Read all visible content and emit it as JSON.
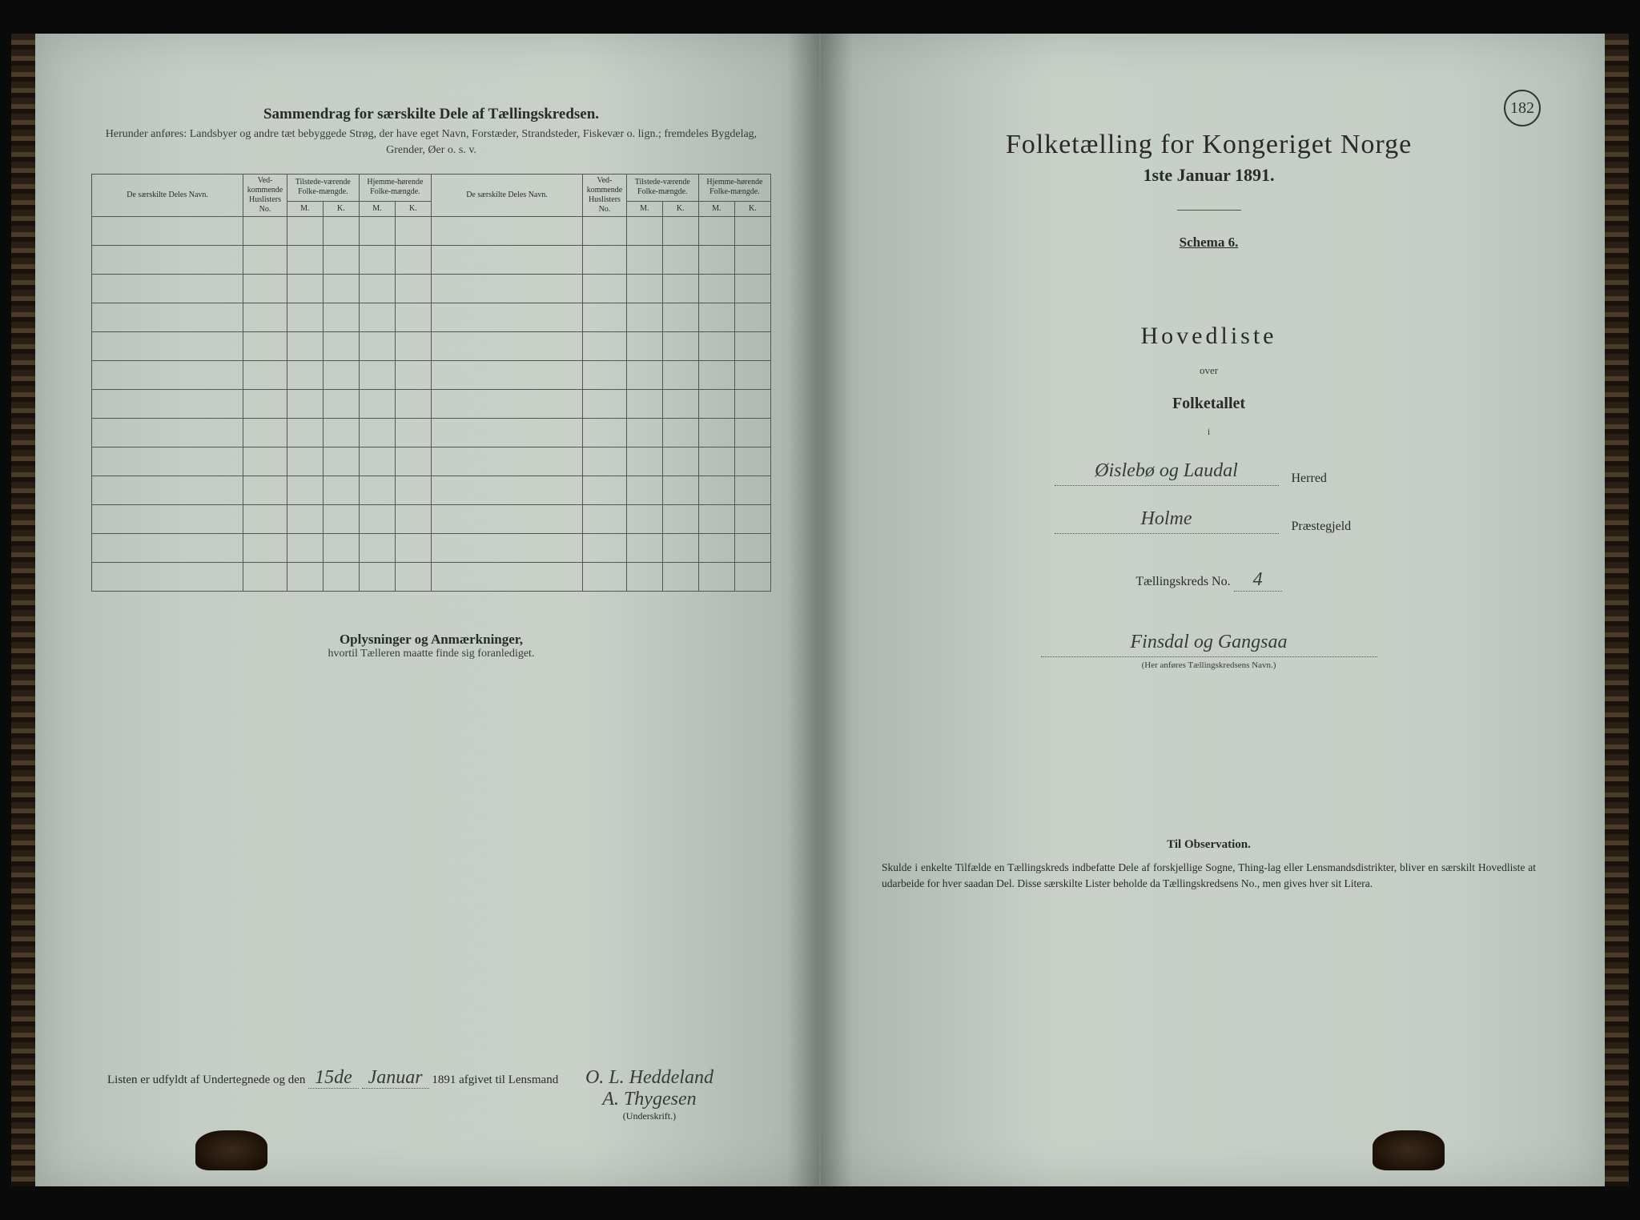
{
  "colors": {
    "paper": "#c5cec6",
    "ink": "#2a2a2a",
    "faded_ink": "#3a3a3a",
    "border": "#555555",
    "background": "#0a0a0a"
  },
  "page_number": "182",
  "left_page": {
    "title": "Sammendrag for særskilte Dele af Tællingskredsen.",
    "subtitle": "Herunder anføres: Landsbyer og andre tæt bebyggede Strøg, der have eget Navn, Forstæder, Strandsteder, Fiskevær o. lign.; fremdeles Bygdelag, Grender, Øer o. s. v.",
    "table": {
      "headers_row1": [
        "De særskilte Deles Navn.",
        "Ved-kommende Huslisters No.",
        "Tilstede-værende Folke-mængde.",
        "Hjemme-hørende Folke-mængde.",
        "De særskilte Deles Navn.",
        "Ved-kommende Huslisters No.",
        "Tilstede-værende Folke-mængde.",
        "Hjemme-hørende Folke-mængde."
      ],
      "headers_row2": [
        "M.",
        "K.",
        "M.",
        "K.",
        "M.",
        "K.",
        "M.",
        "K."
      ],
      "empty_rows": 13
    },
    "notes_title": "Oplysninger og Anmærkninger,",
    "notes_subtitle": "hvortil Tælleren maatte finde sig foranlediget.",
    "footer": {
      "prefix": "Listen er udfyldt af Undertegnede og den",
      "date_day": "15de",
      "date_month": "Januar",
      "year": "1891",
      "suffix": "afgivet til Lensmand",
      "signature1": "O. L. Heddeland",
      "signature2": "A. Thygesen",
      "sig_caption": "(Underskrift.)"
    }
  },
  "right_page": {
    "title": "Folketælling for Kongeriget Norge",
    "date": "1ste Januar 1891.",
    "schema": "Schema 6.",
    "hovedliste": "Hovedliste",
    "over": "over",
    "folketallet": "Folketallet",
    "i": "i",
    "herred_value": "Øislebø og Laudal",
    "herred_label": "Herred",
    "praestegjeld_value": "Holme",
    "praestegjeld_label": "Præstegjeld",
    "kreds_label": "Tællingskreds No.",
    "kreds_no": "4",
    "kreds_name": "Finsdal og Gangsaa",
    "kreds_caption": "(Her anføres Tællingskredsens Navn.)",
    "obs_title": "Til Observation.",
    "obs_text": "Skulde i enkelte Tilfælde en Tællingskreds indbefatte Dele af forskjellige Sogne, Thing-lag eller Lensmandsdistrikter, bliver en særskilt Hovedliste at udarbeide for hver saadan Del. Disse særskilte Lister beholde da Tællingskredsens No., men gives hver sit Litera."
  }
}
